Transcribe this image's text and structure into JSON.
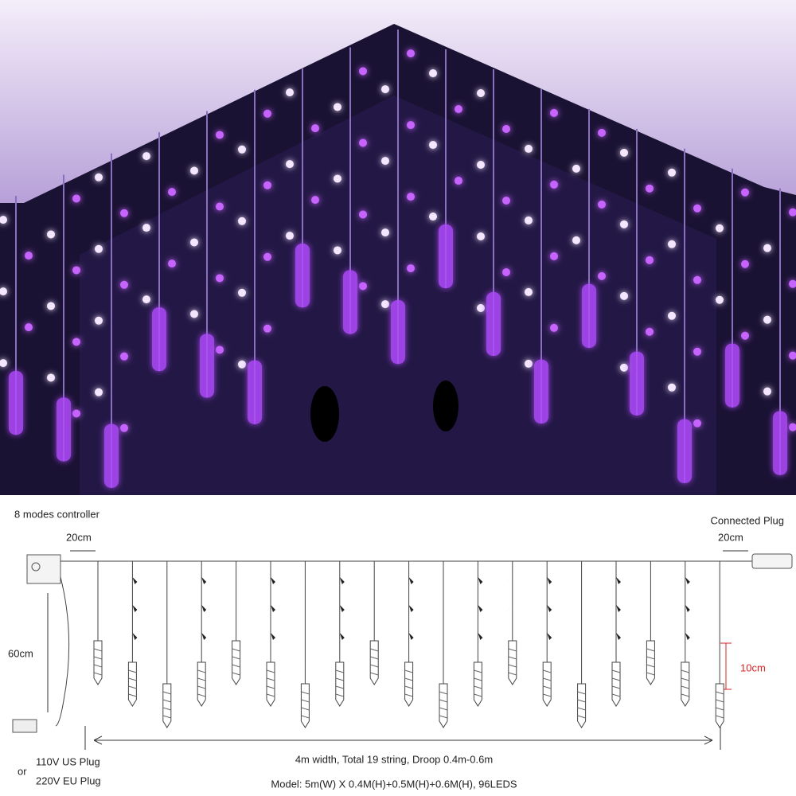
{
  "diagram": {
    "controller_label": "8 modes controller",
    "plug_label": "Connected Plug",
    "left_gap": "20cm",
    "right_gap": "20cm",
    "lead_length": "60cm",
    "icicle_length": "10cm",
    "width_caption": "4m width, Total 19 string, Droop 0.4m-0.6m",
    "us_plug": "110V US Plug",
    "or": "or",
    "eu_plug": "220V EU Plug",
    "model": "Model: 5m(W) X 0.4M(H)+0.5M(H)+0.6M(H), 96LEDS"
  }
}
